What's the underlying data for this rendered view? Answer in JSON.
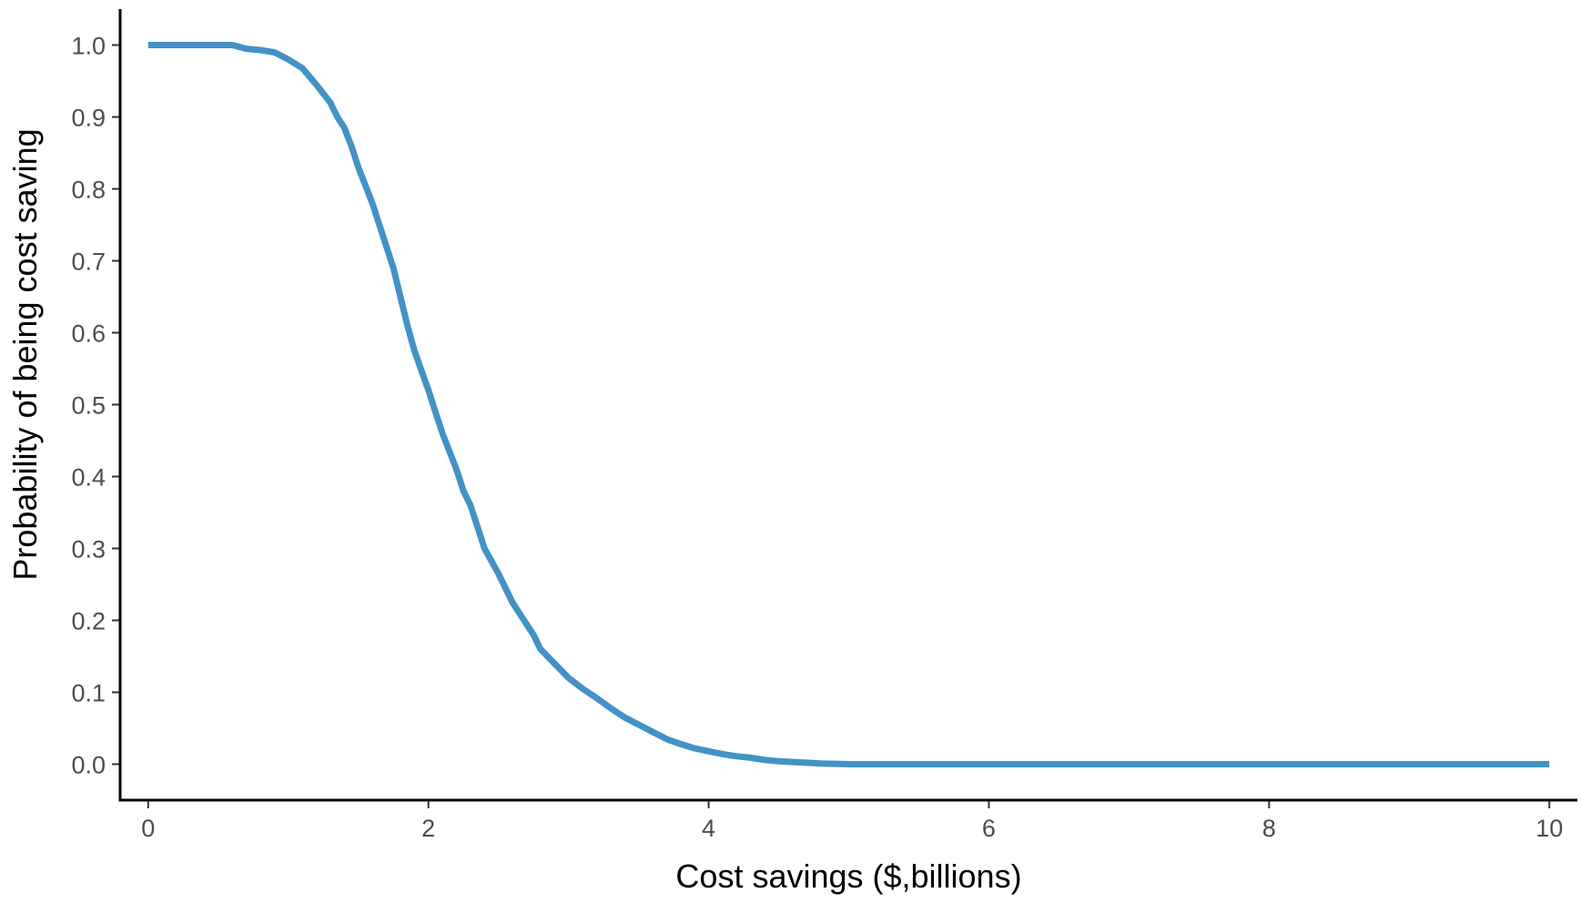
{
  "chart_data": {
    "type": "line",
    "title": "",
    "xlabel": "Cost savings ($,billions)",
    "ylabel": "Probability of being cost saving",
    "xlim": [
      -0.2,
      10.2
    ],
    "ylim": [
      -0.05,
      1.05
    ],
    "xticks": [
      0,
      2,
      4,
      6,
      8,
      10
    ],
    "xtick_labels": [
      "0",
      "2",
      "4",
      "6",
      "8",
      "10"
    ],
    "yticks": [
      0.0,
      0.1,
      0.2,
      0.3,
      0.4,
      0.5,
      0.6,
      0.7,
      0.8,
      0.9,
      1.0
    ],
    "ytick_labels": [
      "0.0",
      "0.1",
      "0.2",
      "0.3",
      "0.4",
      "0.5",
      "0.6",
      "0.7",
      "0.8",
      "0.9",
      "1.0"
    ],
    "grid": false,
    "legend": "none",
    "series": [
      {
        "color": "#4292c6",
        "x": [
          0.0,
          0.3,
          0.6,
          0.7,
          0.8,
          0.9,
          1.0,
          1.1,
          1.2,
          1.3,
          1.35,
          1.4,
          1.45,
          1.5,
          1.6,
          1.7,
          1.75,
          1.8,
          1.85,
          1.9,
          2.0,
          2.05,
          2.1,
          2.2,
          2.25,
          2.3,
          2.35,
          2.4,
          2.5,
          2.55,
          2.6,
          2.7,
          2.75,
          2.8,
          2.9,
          3.0,
          3.1,
          3.2,
          3.3,
          3.4,
          3.5,
          3.6,
          3.7,
          3.8,
          3.9,
          4.0,
          4.1,
          4.2,
          4.3,
          4.4,
          4.5,
          4.6,
          4.7,
          4.8,
          4.9,
          5.0,
          6.0,
          7.0,
          8.0,
          9.0,
          10.0
        ],
        "y": [
          1.0,
          1.0,
          1.0,
          0.995,
          0.993,
          0.99,
          0.98,
          0.968,
          0.945,
          0.92,
          0.9,
          0.885,
          0.86,
          0.83,
          0.78,
          0.72,
          0.69,
          0.65,
          0.61,
          0.575,
          0.52,
          0.49,
          0.46,
          0.41,
          0.38,
          0.36,
          0.33,
          0.3,
          0.265,
          0.245,
          0.225,
          0.195,
          0.18,
          0.16,
          0.14,
          0.12,
          0.105,
          0.092,
          0.078,
          0.065,
          0.055,
          0.045,
          0.035,
          0.028,
          0.022,
          0.018,
          0.014,
          0.011,
          0.009,
          0.006,
          0.004,
          0.003,
          0.002,
          0.001,
          0.0005,
          0.0,
          0.0,
          0.0,
          0.0,
          0.0,
          0.0
        ]
      }
    ]
  }
}
